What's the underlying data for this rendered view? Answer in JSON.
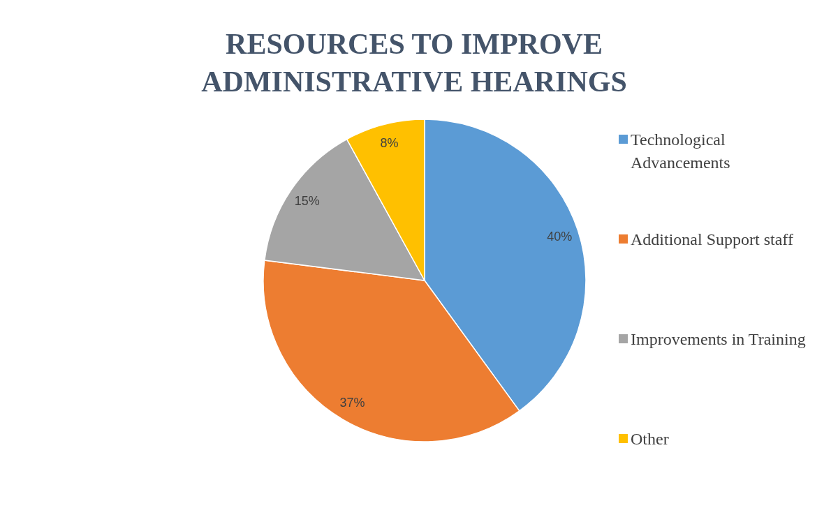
{
  "chart_data": {
    "type": "pie",
    "title": "RESOURCES TO IMPROVE ADMINISTRATIVE HEARINGS",
    "categories": [
      "Technological Advancements",
      "Additional Support staff",
      "Improvements in Training",
      "Other"
    ],
    "values": [
      40,
      37,
      15,
      8
    ],
    "colors": [
      "#5b9bd5",
      "#ed7d31",
      "#a5a5a5",
      "#ffc000"
    ],
    "value_labels": [
      "40%",
      "37%",
      "15%",
      "8%"
    ],
    "legend": "right"
  }
}
